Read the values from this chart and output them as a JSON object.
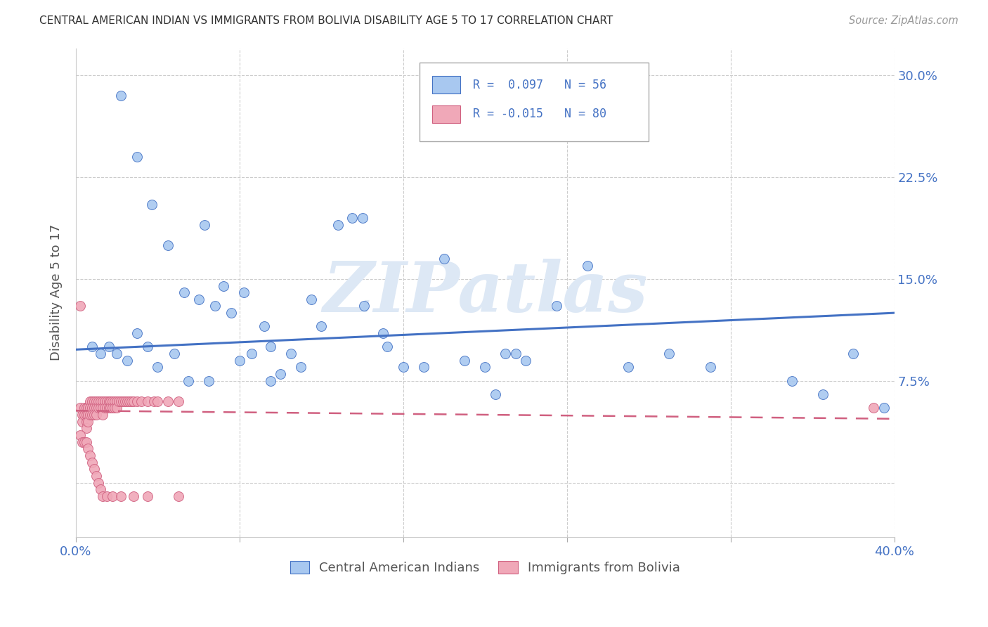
{
  "title": "CENTRAL AMERICAN INDIAN VS IMMIGRANTS FROM BOLIVIA DISABILITY AGE 5 TO 17 CORRELATION CHART",
  "source": "Source: ZipAtlas.com",
  "ylabel": "Disability Age 5 to 17",
  "xlim": [
    0.0,
    0.4
  ],
  "ylim": [
    -0.04,
    0.32
  ],
  "xticks": [
    0.0,
    0.08,
    0.16,
    0.24,
    0.32,
    0.4
  ],
  "xticklabels": [
    "0.0%",
    "",
    "",
    "",
    "",
    "40.0%"
  ],
  "yticks": [
    0.0,
    0.075,
    0.15,
    0.225,
    0.3
  ],
  "yticklabels_right": [
    "",
    "7.5%",
    "15.0%",
    "22.5%",
    "30.0%"
  ],
  "legend_r1": "R =  0.097",
  "legend_n1": "N = 56",
  "legend_r2": "R = -0.015",
  "legend_n2": "N = 80",
  "color_blue": "#A8C8F0",
  "color_pink": "#F0A8B8",
  "edge_blue": "#4472C4",
  "edge_pink": "#D06080",
  "line_blue": "#4472C4",
  "line_pink": "#D06080",
  "watermark": "ZIPatlas",
  "blue_scatter_x": [
    0.022,
    0.03,
    0.037,
    0.045,
    0.053,
    0.06,
    0.063,
    0.068,
    0.072,
    0.076,
    0.082,
    0.086,
    0.092,
    0.095,
    0.1,
    0.105,
    0.11,
    0.115,
    0.12,
    0.128,
    0.135,
    0.14,
    0.141,
    0.15,
    0.152,
    0.16,
    0.17,
    0.18,
    0.19,
    0.2,
    0.205,
    0.21,
    0.215,
    0.22,
    0.235,
    0.25,
    0.27,
    0.29,
    0.31,
    0.35,
    0.365,
    0.38,
    0.395,
    0.008,
    0.012,
    0.016,
    0.02,
    0.025,
    0.03,
    0.035,
    0.04,
    0.048,
    0.055,
    0.065,
    0.08,
    0.095
  ],
  "blue_scatter_y": [
    0.285,
    0.24,
    0.205,
    0.175,
    0.14,
    0.135,
    0.19,
    0.13,
    0.145,
    0.125,
    0.14,
    0.095,
    0.115,
    0.1,
    0.08,
    0.095,
    0.085,
    0.135,
    0.115,
    0.19,
    0.195,
    0.195,
    0.13,
    0.11,
    0.1,
    0.085,
    0.085,
    0.165,
    0.09,
    0.085,
    0.065,
    0.095,
    0.095,
    0.09,
    0.13,
    0.16,
    0.085,
    0.095,
    0.085,
    0.075,
    0.065,
    0.095,
    0.055,
    0.1,
    0.095,
    0.1,
    0.095,
    0.09,
    0.11,
    0.1,
    0.085,
    0.095,
    0.075,
    0.075,
    0.09,
    0.075
  ],
  "pink_scatter_x": [
    0.002,
    0.003,
    0.003,
    0.004,
    0.004,
    0.005,
    0.005,
    0.005,
    0.005,
    0.006,
    0.006,
    0.006,
    0.007,
    0.007,
    0.007,
    0.008,
    0.008,
    0.008,
    0.009,
    0.009,
    0.009,
    0.01,
    0.01,
    0.01,
    0.011,
    0.011,
    0.012,
    0.012,
    0.013,
    0.013,
    0.013,
    0.014,
    0.014,
    0.015,
    0.015,
    0.016,
    0.016,
    0.017,
    0.017,
    0.018,
    0.018,
    0.019,
    0.019,
    0.02,
    0.02,
    0.021,
    0.022,
    0.023,
    0.024,
    0.025,
    0.026,
    0.027,
    0.028,
    0.03,
    0.032,
    0.035,
    0.038,
    0.04,
    0.045,
    0.05,
    0.002,
    0.003,
    0.004,
    0.005,
    0.006,
    0.007,
    0.008,
    0.009,
    0.01,
    0.011,
    0.012,
    0.013,
    0.015,
    0.018,
    0.022,
    0.028,
    0.035,
    0.05,
    0.39,
    0.002
  ],
  "pink_scatter_y": [
    0.055,
    0.05,
    0.045,
    0.055,
    0.05,
    0.055,
    0.05,
    0.045,
    0.04,
    0.055,
    0.05,
    0.045,
    0.06,
    0.055,
    0.05,
    0.06,
    0.055,
    0.05,
    0.06,
    0.055,
    0.05,
    0.06,
    0.055,
    0.05,
    0.06,
    0.055,
    0.06,
    0.055,
    0.06,
    0.055,
    0.05,
    0.06,
    0.055,
    0.06,
    0.055,
    0.06,
    0.055,
    0.06,
    0.055,
    0.06,
    0.055,
    0.06,
    0.055,
    0.06,
    0.055,
    0.06,
    0.06,
    0.06,
    0.06,
    0.06,
    0.06,
    0.06,
    0.06,
    0.06,
    0.06,
    0.06,
    0.06,
    0.06,
    0.06,
    0.06,
    0.035,
    0.03,
    0.03,
    0.03,
    0.025,
    0.02,
    0.015,
    0.01,
    0.005,
    0.0,
    -0.005,
    -0.01,
    -0.01,
    -0.01,
    -0.01,
    -0.01,
    -0.01,
    -0.01,
    0.055,
    0.13
  ],
  "blue_trend_x": [
    0.0,
    0.4
  ],
  "blue_trend_y": [
    0.098,
    0.125
  ],
  "pink_trend_x": [
    0.0,
    0.4
  ],
  "pink_trend_y": [
    0.053,
    0.047
  ]
}
